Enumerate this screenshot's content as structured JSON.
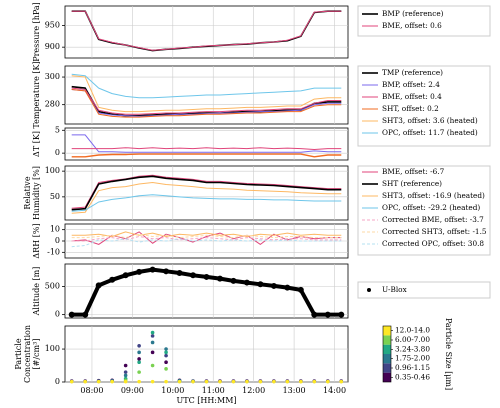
{
  "chart_data": [
    {
      "type": "line",
      "ylabel": [
        "Pressure [hPa]"
      ],
      "x": [
        "07:30",
        "07:50",
        "08:10",
        "08:30",
        "08:50",
        "09:10",
        "09:30",
        "09:50",
        "10:10",
        "10:30",
        "10:50",
        "11:10",
        "11:30",
        "11:50",
        "12:10",
        "12:30",
        "12:50",
        "13:10",
        "13:30",
        "13:50",
        "14:10"
      ],
      "xlim": [
        "07:20",
        "14:20"
      ],
      "xticks": [
        "08:00",
        "09:00",
        "10:00",
        "11:00",
        "12:00",
        "13:00",
        "14:00"
      ],
      "ylim": [
        875,
        995
      ],
      "yticks": [
        900,
        950
      ],
      "grid": true,
      "series": [
        {
          "name": "BMP (reference)",
          "color": "#000000",
          "width": 1.6,
          "values": [
            983,
            983,
            918,
            910,
            905,
            898,
            892,
            895,
            897,
            900,
            902,
            904,
            906,
            907,
            910,
            912,
            915,
            925,
            980,
            983,
            983
          ]
        },
        {
          "name": "BME, offset: 0.6",
          "color": "#e0457b",
          "width": 1,
          "values": [
            983,
            983,
            919,
            911,
            905,
            899,
            893,
            895,
            898,
            900,
            903,
            904,
            906,
            908,
            910,
            912,
            916,
            926,
            981,
            983,
            983
          ]
        }
      ]
    },
    {
      "type": "line",
      "ylabel": [
        "Temperature [K]"
      ],
      "x": [
        "07:30",
        "07:50",
        "08:10",
        "08:30",
        "08:50",
        "09:10",
        "09:30",
        "09:50",
        "10:10",
        "10:30",
        "10:50",
        "11:10",
        "11:30",
        "11:50",
        "12:10",
        "12:30",
        "12:50",
        "13:10",
        "13:30",
        "13:50",
        "14:10"
      ],
      "xlim": [
        "07:20",
        "14:20"
      ],
      "xticks": [
        "08:00",
        "09:00",
        "10:00",
        "11:00",
        "12:00",
        "13:00",
        "14:00"
      ],
      "ylim": [
        266,
        308
      ],
      "yticks": [
        280,
        300
      ],
      "grid": true,
      "series": [
        {
          "name": "TMP (reference)",
          "color": "#000000",
          "width": 1.6,
          "values": [
            293,
            292,
            275,
            273,
            272,
            272,
            272.5,
            273,
            273,
            273.5,
            274,
            274,
            274.5,
            275,
            275,
            275.5,
            276,
            276,
            281,
            282,
            282
          ]
        },
        {
          "name": "BMP, offset: 2.4",
          "color": "#7b68ee",
          "width": 1,
          "values": [
            291,
            290,
            274,
            272.5,
            272,
            271.5,
            272,
            272.5,
            273,
            273,
            273.5,
            274,
            274,
            274.5,
            275,
            275,
            275.5,
            276,
            280,
            281,
            281
          ]
        },
        {
          "name": "BME, offset: 0.4",
          "color": "#e0457b",
          "width": 1,
          "values": [
            292,
            291,
            276,
            274,
            273,
            273,
            273.5,
            274,
            274,
            274.5,
            275,
            275,
            275.5,
            276,
            276,
            276.5,
            277,
            277,
            281,
            283,
            283
          ]
        },
        {
          "name": "SHT, offset: 0.2",
          "color": "#f26b21",
          "width": 1,
          "values": [
            291,
            290,
            273,
            271.5,
            271,
            271,
            271.5,
            272,
            272,
            272.5,
            273,
            273,
            273.5,
            274,
            274,
            274.5,
            275,
            275,
            279,
            280,
            280
          ]
        },
        {
          "name": "SHT3, offset: 3.6 (heated)",
          "color": "#fdb863",
          "width": 1,
          "values": [
            301,
            300,
            278,
            276,
            275,
            275,
            275.5,
            276,
            276,
            276.5,
            277,
            277,
            277.5,
            278,
            278,
            278.5,
            279,
            279,
            284,
            285,
            285
          ]
        },
        {
          "name": "OPC, offset: 11.7 (heated)",
          "color": "#6ec6ea",
          "width": 1,
          "values": [
            302,
            301,
            292,
            288,
            286,
            285,
            285,
            285.5,
            286,
            286.5,
            287,
            287,
            287.5,
            288,
            288.5,
            289,
            289.5,
            290,
            292,
            292,
            292
          ]
        }
      ]
    },
    {
      "type": "line",
      "ylabel": [
        "ΔT [K]"
      ],
      "x": [
        "07:30",
        "07:50",
        "08:10",
        "08:30",
        "08:50",
        "09:10",
        "09:30",
        "09:50",
        "10:10",
        "10:30",
        "10:50",
        "11:10",
        "11:30",
        "11:50",
        "12:10",
        "12:30",
        "12:50",
        "13:10",
        "13:30",
        "13:50",
        "14:10"
      ],
      "xlim": [
        "07:20",
        "14:20"
      ],
      "xticks": [
        "08:00",
        "09:00",
        "10:00",
        "11:00",
        "12:00",
        "13:00",
        "14:00"
      ],
      "ylim": [
        -1.5,
        5.5
      ],
      "yticks": [
        0,
        5
      ],
      "grid": true,
      "series": [
        {
          "color": "#7b68ee",
          "width": 1,
          "values": [
            4,
            4,
            0.3,
            0.3,
            0.2,
            0.2,
            0.2,
            0.2,
            0.2,
            0.2,
            0.2,
            0.2,
            0.2,
            0.2,
            0.2,
            0.2,
            0.2,
            0.2,
            0.5,
            0.3,
            0.3
          ]
        },
        {
          "color": "#e0457b",
          "width": 1,
          "values": [
            1,
            1,
            1,
            1,
            1.2,
            1,
            1.2,
            1,
            1.1,
            1,
            1.2,
            1,
            1.1,
            1,
            1.2,
            1,
            1.1,
            1,
            0.8,
            1,
            1
          ]
        },
        {
          "color": "#f26b21",
          "width": 1.4,
          "values": [
            -0.8,
            -0.8,
            -0.4,
            -0.3,
            -0.3,
            -0.2,
            -0.2,
            -0.2,
            -0.2,
            -0.2,
            -0.2,
            -0.2,
            -0.2,
            -0.2,
            -0.2,
            -0.2,
            -0.2,
            -0.2,
            -0.8,
            -0.4,
            -0.4
          ]
        }
      ]
    },
    {
      "type": "line",
      "ylabel": [
        "Relative",
        "Humidity [%]"
      ],
      "x": [
        "07:30",
        "07:50",
        "08:10",
        "08:30",
        "08:50",
        "09:10",
        "09:30",
        "09:50",
        "10:10",
        "10:30",
        "10:50",
        "11:10",
        "11:30",
        "11:50",
        "12:10",
        "12:30",
        "12:50",
        "13:10",
        "13:30",
        "13:50",
        "14:10"
      ],
      "xlim": [
        "07:20",
        "14:20"
      ],
      "xticks": [
        "08:00",
        "09:00",
        "10:00",
        "11:00",
        "12:00",
        "13:00",
        "14:00"
      ],
      "ylim": [
        5,
        110
      ],
      "yticks": [
        50,
        100
      ],
      "grid": true,
      "series": [
        {
          "name": "BME, offset: -6.7",
          "color": "#e0457b",
          "width": 1,
          "values": [
            28,
            30,
            78,
            82,
            85,
            90,
            92,
            88,
            86,
            84,
            80,
            80,
            78,
            76,
            75,
            74,
            72,
            70,
            68,
            66,
            66
          ]
        },
        {
          "name": "SHT (reference)",
          "color": "#000000",
          "width": 1.6,
          "values": [
            25,
            27,
            75,
            80,
            84,
            88,
            90,
            86,
            84,
            82,
            78,
            78,
            76,
            74,
            73,
            72,
            70,
            68,
            66,
            64,
            64
          ]
        },
        {
          "name": "SHT3, offset: -16.9 (heated)",
          "color": "#fdb863",
          "width": 1,
          "values": [
            18,
            20,
            62,
            68,
            70,
            75,
            78,
            74,
            72,
            70,
            67,
            66,
            65,
            63,
            62,
            61,
            60,
            58,
            57,
            56,
            56
          ]
        },
        {
          "name": "OPC, offset: -29.2 (heated)",
          "color": "#6ec6ea",
          "width": 1,
          "values": [
            22,
            24,
            40,
            45,
            48,
            52,
            54,
            52,
            50,
            48,
            47,
            46,
            46,
            45,
            45,
            44,
            44,
            43,
            42,
            42,
            42
          ]
        }
      ]
    },
    {
      "type": "line",
      "ylabel": [
        "ΔRH [%]"
      ],
      "x": [
        "07:30",
        "07:50",
        "08:10",
        "08:30",
        "08:50",
        "09:10",
        "09:30",
        "09:50",
        "10:10",
        "10:30",
        "10:50",
        "11:10",
        "11:30",
        "11:50",
        "12:10",
        "12:30",
        "12:50",
        "13:10",
        "13:30",
        "13:50",
        "14:10"
      ],
      "xlim": [
        "07:20",
        "14:20"
      ],
      "xticks": [
        "08:00",
        "09:00",
        "10:00",
        "11:00",
        "12:00",
        "13:00",
        "14:00"
      ],
      "ylim": [
        -15,
        15
      ],
      "yticks": [
        -10,
        0,
        10
      ],
      "grid": true,
      "series": [
        {
          "color": "#e0457b",
          "width": 1,
          "values": [
            0,
            1,
            -3,
            5,
            2,
            8,
            -2,
            6,
            3,
            -1,
            4,
            7,
            2,
            5,
            -3,
            6,
            1,
            4,
            2,
            3,
            3
          ]
        },
        {
          "color": "#fdb863",
          "width": 1,
          "values": [
            5,
            5,
            6,
            4,
            8,
            5,
            7,
            4,
            6,
            5,
            7,
            5,
            6,
            4,
            6,
            5,
            7,
            5,
            6,
            5,
            5
          ]
        },
        {
          "name": "Corrected BME, offset: -3.7",
          "color": "#f4a6c6",
          "width": 1,
          "dash": true,
          "values": [
            0,
            0,
            2,
            3,
            1,
            4,
            2,
            3,
            1,
            2,
            3,
            2,
            1,
            3,
            2,
            1,
            2,
            2,
            1,
            1,
            1
          ]
        },
        {
          "name": "Corrected SHT3, offset: -1.5",
          "color": "#fdd9a6",
          "width": 1,
          "dash": true,
          "values": [
            3,
            3,
            4,
            5,
            3,
            6,
            4,
            5,
            3,
            4,
            5,
            4,
            3,
            5,
            4,
            3,
            4,
            4,
            3,
            3,
            3
          ]
        },
        {
          "name": "Corrected OPC, offset: 30.8",
          "color": "#b3e0f2",
          "width": 1,
          "dash": true,
          "values": [
            -5,
            -4,
            1,
            0,
            2,
            -1,
            1,
            0,
            2,
            0,
            1,
            0,
            1,
            0,
            1,
            0,
            1,
            0,
            0,
            0,
            0
          ]
        }
      ]
    },
    {
      "type": "dots",
      "ylabel": [
        "Altitude [m]"
      ],
      "x": [
        "07:30",
        "07:50",
        "08:10",
        "08:30",
        "08:50",
        "09:10",
        "09:30",
        "09:50",
        "10:10",
        "10:30",
        "10:50",
        "11:10",
        "11:30",
        "11:50",
        "12:10",
        "12:30",
        "12:50",
        "13:10",
        "13:30",
        "13:50",
        "14:10"
      ],
      "xlim": [
        "07:20",
        "14:20"
      ],
      "xticks": [
        "08:00",
        "09:00",
        "10:00",
        "11:00",
        "12:00",
        "13:00",
        "14:00"
      ],
      "ylim": [
        -60,
        900
      ],
      "yticks": [
        0,
        500
      ],
      "grid": true,
      "series": [
        {
          "name": "U-Blox",
          "color": "#000000",
          "width": 4,
          "values": [
            0,
            0,
            520,
            620,
            700,
            760,
            800,
            770,
            740,
            700,
            670,
            640,
            600,
            570,
            540,
            510,
            480,
            440,
            0,
            0,
            0
          ]
        }
      ]
    },
    {
      "type": "scatter",
      "ylabel": [
        "Particle",
        "Concentration",
        "[#/cm³]"
      ],
      "xlabel": "UTC [HH:MM]",
      "colorbar_label": "Particle Size [μm]",
      "x": [
        "07:30",
        "07:50",
        "08:10",
        "08:30",
        "08:50",
        "09:10",
        "09:30",
        "09:50",
        "10:10",
        "10:30",
        "10:50",
        "11:10",
        "11:30",
        "11:50",
        "12:10",
        "12:30",
        "12:50",
        "13:10",
        "13:30",
        "13:50",
        "14:10"
      ],
      "xlim": [
        "07:20",
        "14:20"
      ],
      "xticks": [
        "08:00",
        "09:00",
        "10:00",
        "11:00",
        "12:00",
        "13:00",
        "14:00"
      ],
      "ylim": [
        0,
        170
      ],
      "yticks": [
        0,
        100
      ],
      "grid": true,
      "series": [
        {
          "name": "0.35-0.46",
          "color": "#440154",
          "values": [
            3,
            3,
            4,
            5,
            50,
            70,
            90,
            60,
            5,
            3,
            3,
            3,
            3,
            3,
            3,
            3,
            3,
            3,
            3,
            3,
            3
          ]
        },
        {
          "name": "0.96-1.15",
          "color": "#414487",
          "values": [
            2,
            2,
            3,
            4,
            30,
            110,
            140,
            80,
            4,
            2,
            2,
            2,
            2,
            2,
            2,
            2,
            2,
            2,
            2,
            2,
            2
          ]
        },
        {
          "name": "1.75-2.00",
          "color": "#2a788e",
          "values": [
            null,
            null,
            2,
            3,
            20,
            90,
            120,
            100,
            3,
            2,
            null,
            null,
            null,
            null,
            null,
            null,
            null,
            null,
            null,
            null,
            null
          ]
        },
        {
          "name": "3.24-3.80",
          "color": "#22a884",
          "values": [
            null,
            null,
            null,
            null,
            10,
            60,
            150,
            90,
            2,
            null,
            null,
            null,
            null,
            null,
            null,
            null,
            null,
            null,
            null,
            null,
            null
          ]
        },
        {
          "name": "6.00-7.00",
          "color": "#7ad151",
          "values": [
            null,
            null,
            null,
            null,
            5,
            30,
            50,
            40,
            null,
            null,
            null,
            null,
            null,
            null,
            null,
            null,
            null,
            null,
            null,
            null,
            null
          ]
        },
        {
          "name": "12.0-14.0",
          "color": "#fde725",
          "values": [
            1,
            1,
            1,
            1,
            1,
            1,
            1,
            1,
            1,
            1,
            1,
            1,
            1,
            1,
            1,
            1,
            1,
            1,
            1,
            1,
            1
          ]
        }
      ]
    }
  ]
}
